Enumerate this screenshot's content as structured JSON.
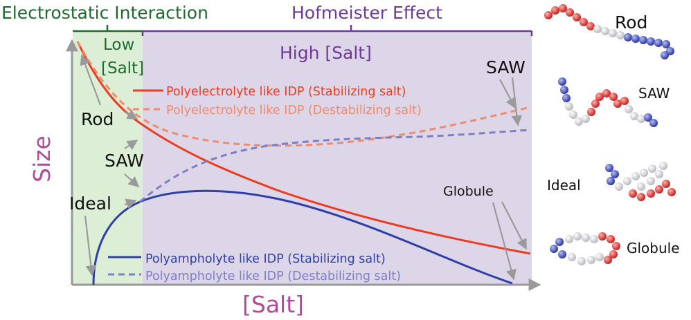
{
  "header": {
    "electrostatic": "Electrostatic Interaction",
    "hofmeister": "Hofmeister Effect"
  },
  "regions": {
    "low_line1": "Low",
    "low_line2": "[Salt]",
    "high": "High [Salt]"
  },
  "axes": {
    "ylabel": "Size",
    "xlabel": "[Salt]"
  },
  "annotations": {
    "rod": "Rod",
    "saw_left": "SAW",
    "ideal": "Ideal",
    "saw_right": "SAW",
    "globule": "Globule"
  },
  "legend": {
    "pe_stab": "Polyelectrolyte like IDP (Stabilizing salt)",
    "pe_destab": "Polyelectrolyte like IDP (Destabilizing salt)",
    "pa_stab": "Polyampholyte like IDP (Stabilizing salt)",
    "pa_destab": "Polyampholyte like IDP (Destabilizing salt)"
  },
  "thumbnails": {
    "rod": "Rod",
    "saw": "SAW",
    "ideal": "Ideal",
    "globule": "Globule"
  },
  "colors": {
    "electrostatic_text": "#1e6b2e",
    "hofmeister_text": "#6e3a9a",
    "low_region": "#ddeed6",
    "high_region": "#ddd6e8",
    "pe": "#ee3b1f",
    "pe_dashed": "#f08a6c",
    "pa": "#2f3fa8",
    "pa_dashed": "#7c7fc4",
    "size_label": "#b04a9a",
    "annotation_arrow": "#9a9a9a"
  }
}
